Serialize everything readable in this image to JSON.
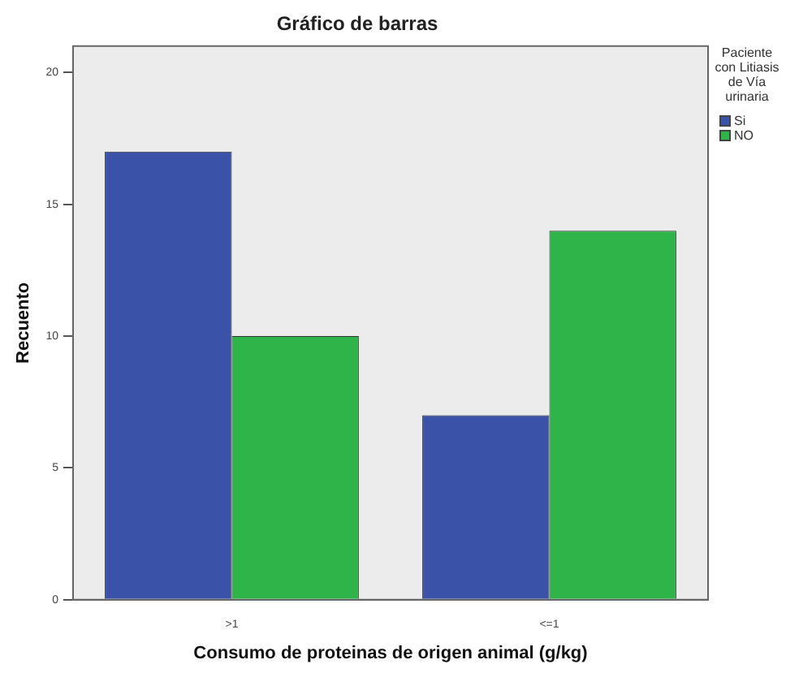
{
  "chart_data": {
    "type": "bar",
    "title": "Gráfico de barras",
    "xlabel": "Consumo de proteinas de origen animal (g/kg)",
    "ylabel": "Recuento",
    "legend_title": "Paciente con Litiasis de Vía urinaria",
    "categories": [
      ">1",
      "<=1"
    ],
    "series": [
      {
        "name": "Si",
        "color": "#3a52a8",
        "values": [
          17,
          7
        ]
      },
      {
        "name": "NO",
        "color": "#2fb44a",
        "values": [
          10,
          14
        ]
      }
    ],
    "ylim": [
      0,
      21
    ],
    "yticks": [
      0,
      5,
      10,
      15,
      20
    ],
    "grid": false,
    "legend": "right"
  }
}
